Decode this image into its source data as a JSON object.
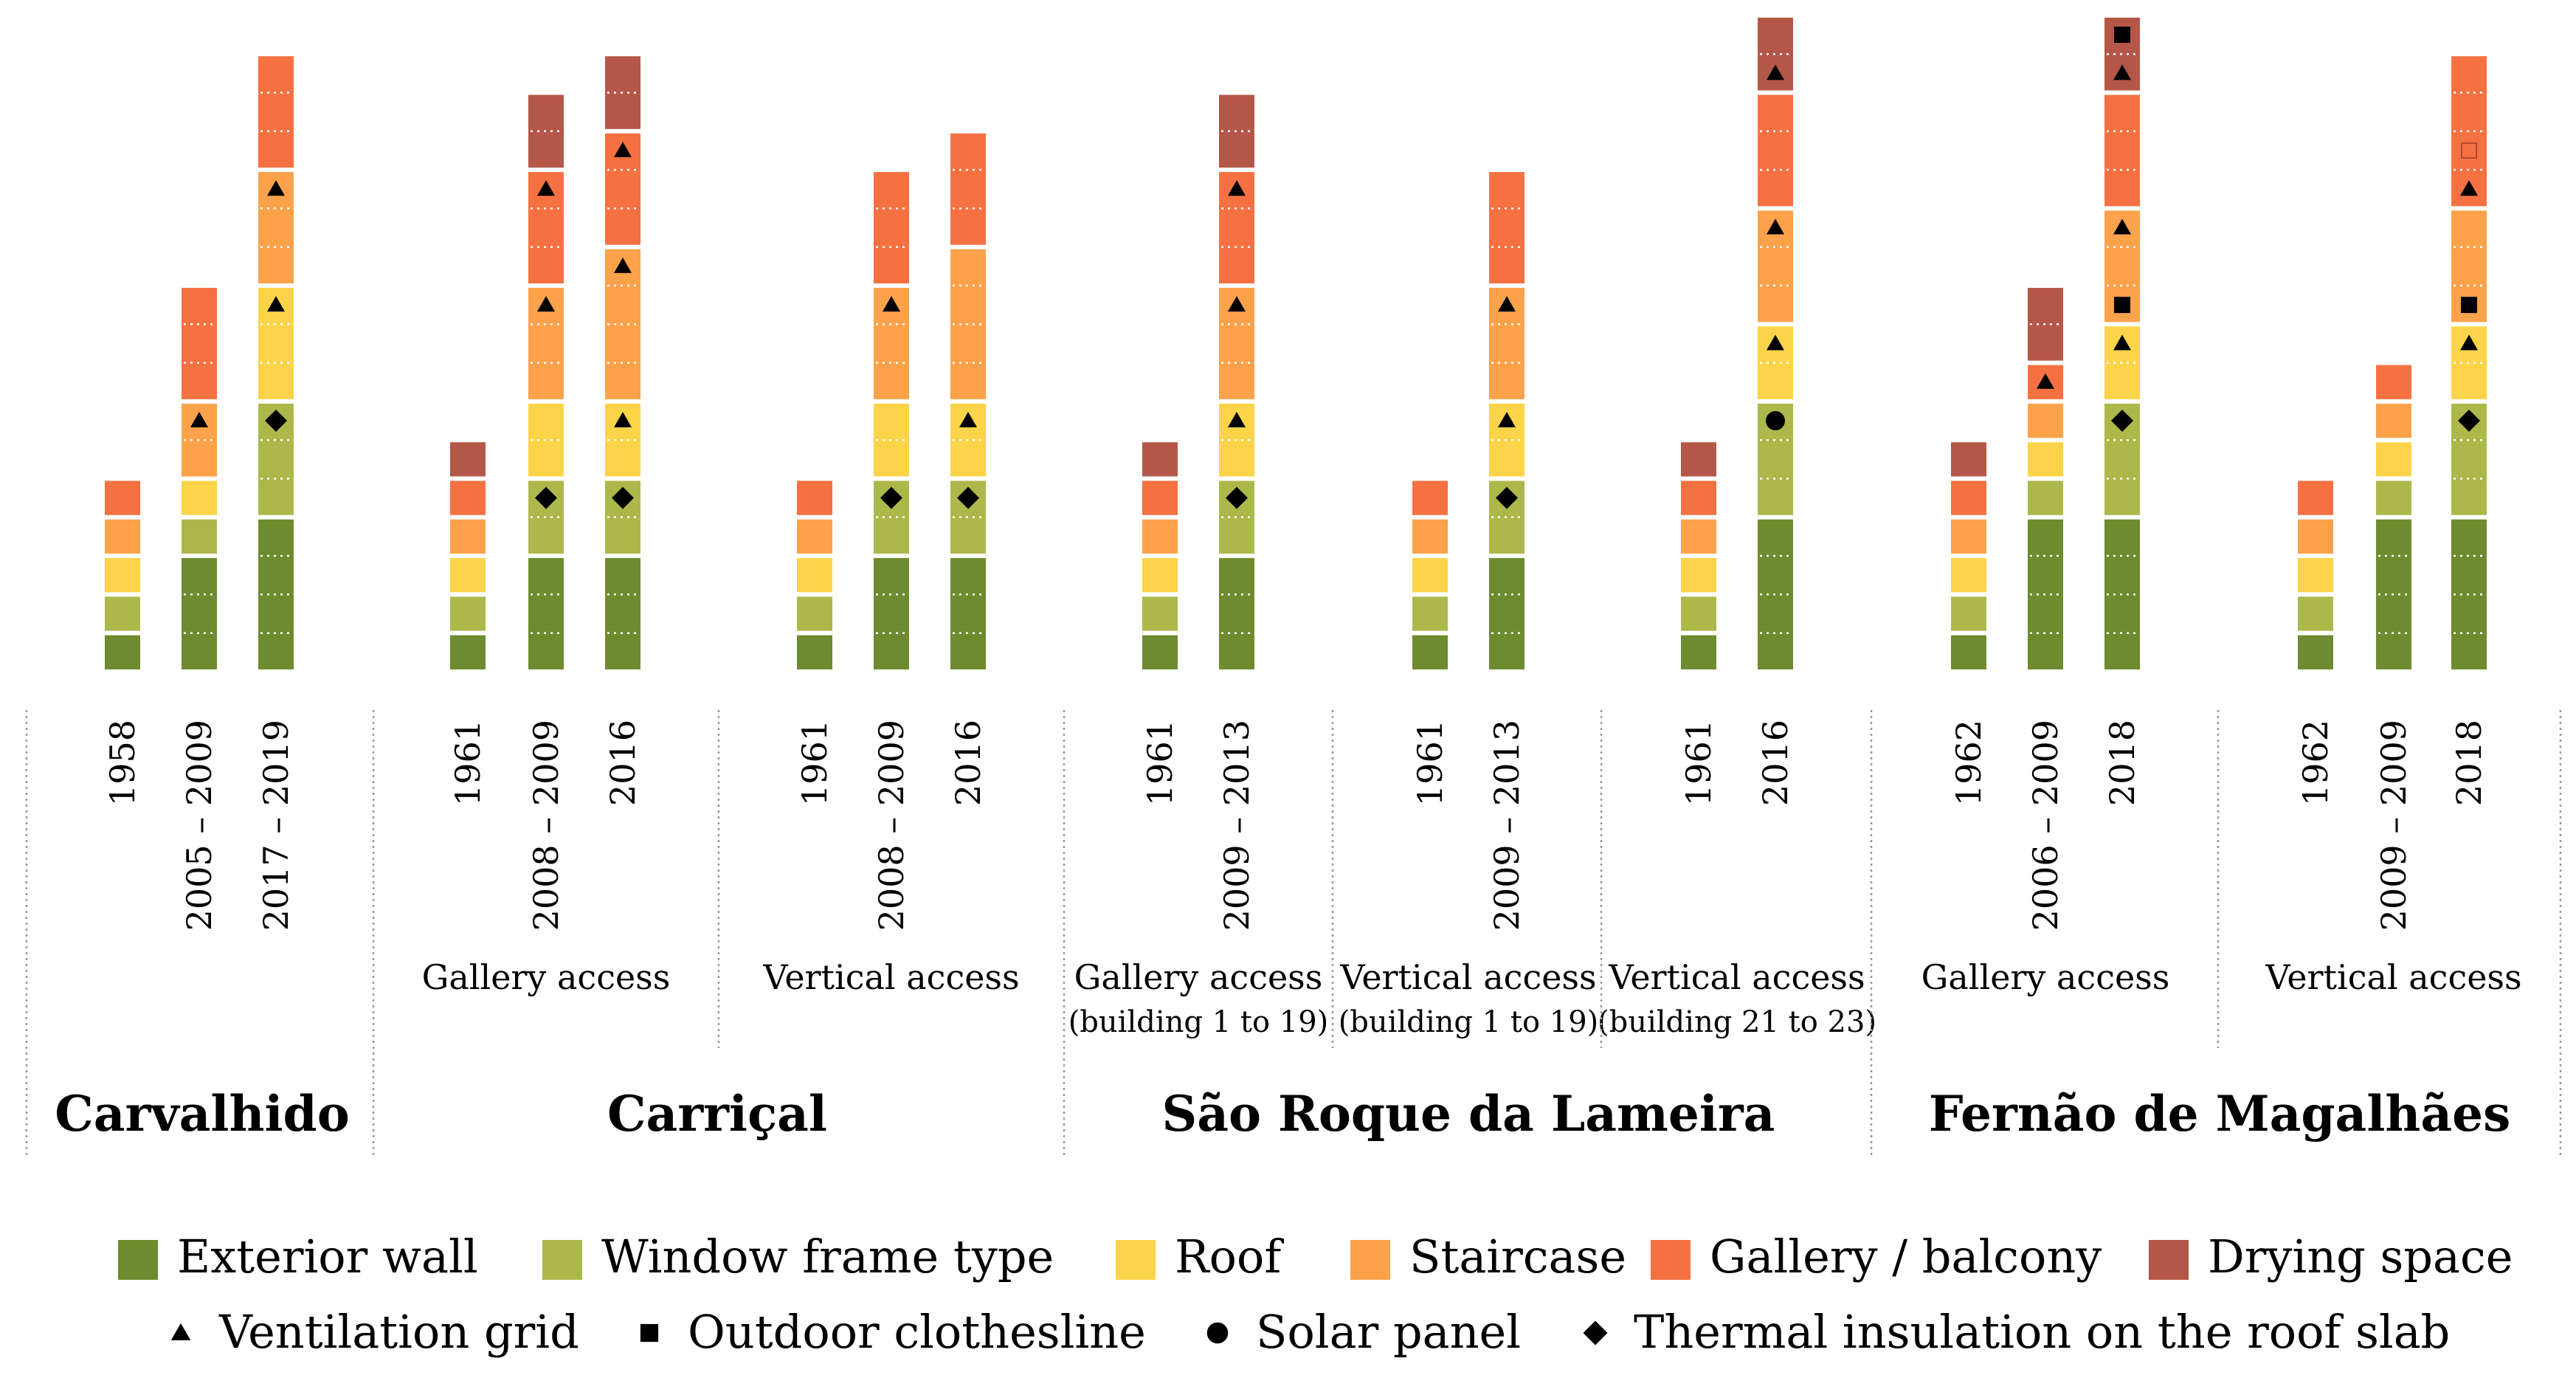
{
  "chart_data": {
    "type": "stacked-bar",
    "title": "",
    "xlabel": "",
    "ylabel": "",
    "ylim": [
      0,
      17
    ],
    "grid": false,
    "legend_position": "bottom",
    "categories_stack_order": [
      "Exterior wall",
      "Window frame type",
      "Roof",
      "Staircase",
      "Gallery / balcony",
      "Drying space"
    ],
    "colors": {
      "Exterior wall": "#6e8b2f",
      "Window frame type": "#adb84b",
      "Roof": "#fcd44a",
      "Staircase": "#fba24b",
      "Gallery / balcony": "#f57142",
      "Drying space": "#b55748",
      "marker": "#000000",
      "divider": "#999999"
    },
    "legend": {
      "items": [
        {
          "label": "Exterior wall",
          "key": "Exterior wall"
        },
        {
          "label": "Window frame type",
          "key": "Window frame type"
        },
        {
          "label": "Roof",
          "key": "Roof"
        },
        {
          "label": "Staircase",
          "key": "Staircase"
        },
        {
          "label": "Gallery / balcony",
          "key": "Gallery / balcony"
        },
        {
          "label": "Drying space",
          "key": "Drying space"
        }
      ],
      "markers": [
        {
          "label": "Ventilation grid",
          "symbol": "triangle"
        },
        {
          "label": "Outdoor clothesline",
          "symbol": "square"
        },
        {
          "label": "Solar panel",
          "symbol": "circle"
        },
        {
          "label": "Thermal insulation on the roof slab",
          "symbol": "diamond"
        }
      ]
    },
    "neighbourhoods": [
      {
        "name": "Carvalhido",
        "subgroups": [
          {
            "label": "",
            "label2": "",
            "bars": [
              {
                "year": "1958",
                "segments": [
                  1,
                  1,
                  1,
                  1,
                  1,
                  0
                ],
                "markers": []
              },
              {
                "year": "2005 – 2009",
                "segments": [
                  3,
                  1,
                  1,
                  2,
                  3,
                  0
                ],
                "markers": [
                  {
                    "unit": 7,
                    "symbol": "triangle"
                  }
                ]
              },
              {
                "year": "2017 – 2019",
                "segments": [
                  4,
                  3,
                  3,
                  3,
                  3,
                  0
                ],
                "markers": [
                  {
                    "unit": 7,
                    "symbol": "diamond"
                  },
                  {
                    "unit": 10,
                    "symbol": "triangle"
                  },
                  {
                    "unit": 13,
                    "symbol": "triangle"
                  }
                ]
              }
            ]
          }
        ]
      },
      {
        "name": "Carriçal",
        "subgroups": [
          {
            "label": "Gallery access",
            "label2": "",
            "bars": [
              {
                "year": "1961",
                "segments": [
                  1,
                  1,
                  1,
                  1,
                  1,
                  1
                ],
                "markers": []
              },
              {
                "year": "2008 – 2009",
                "segments": [
                  3,
                  2,
                  2,
                  3,
                  3,
                  2
                ],
                "markers": [
                  {
                    "unit": 5,
                    "symbol": "diamond"
                  },
                  {
                    "unit": 10,
                    "symbol": "triangle"
                  },
                  {
                    "unit": 13,
                    "symbol": "triangle"
                  }
                ]
              },
              {
                "year": "2016",
                "segments": [
                  3,
                  2,
                  2,
                  4,
                  3,
                  2
                ],
                "markers": [
                  {
                    "unit": 5,
                    "symbol": "diamond"
                  },
                  {
                    "unit": 7,
                    "symbol": "triangle"
                  },
                  {
                    "unit": 11,
                    "symbol": "triangle"
                  },
                  {
                    "unit": 14,
                    "symbol": "triangle"
                  }
                ]
              }
            ]
          },
          {
            "label": "Vertical access",
            "label2": "",
            "bars": [
              {
                "year": "1961",
                "segments": [
                  1,
                  1,
                  1,
                  1,
                  1,
                  0
                ],
                "markers": []
              },
              {
                "year": "2008 – 2009",
                "segments": [
                  3,
                  2,
                  2,
                  3,
                  3,
                  0
                ],
                "markers": [
                  {
                    "unit": 5,
                    "symbol": "diamond"
                  },
                  {
                    "unit": 10,
                    "symbol": "triangle"
                  }
                ]
              },
              {
                "year": "2016",
                "segments": [
                  3,
                  2,
                  2,
                  4,
                  3,
                  0
                ],
                "markers": [
                  {
                    "unit": 5,
                    "symbol": "diamond"
                  },
                  {
                    "unit": 7,
                    "symbol": "triangle"
                  }
                ]
              }
            ]
          }
        ]
      },
      {
        "name": "São Roque da Lameira",
        "subgroups": [
          {
            "label": "Gallery access",
            "label2": "(building 1 to 19)",
            "bars": [
              {
                "year": "1961",
                "segments": [
                  1,
                  1,
                  1,
                  1,
                  1,
                  1
                ],
                "markers": []
              },
              {
                "year": "2009 – 2013",
                "segments": [
                  3,
                  2,
                  2,
                  3,
                  3,
                  2
                ],
                "markers": [
                  {
                    "unit": 5,
                    "symbol": "diamond"
                  },
                  {
                    "unit": 7,
                    "symbol": "triangle"
                  },
                  {
                    "unit": 10,
                    "symbol": "triangle"
                  },
                  {
                    "unit": 13,
                    "symbol": "triangle"
                  }
                ]
              }
            ]
          },
          {
            "label": "Vertical access",
            "label2": "(building 1 to 19)",
            "bars": [
              {
                "year": "1961",
                "segments": [
                  1,
                  1,
                  1,
                  1,
                  1,
                  0
                ],
                "markers": []
              },
              {
                "year": "2009 – 2013",
                "segments": [
                  3,
                  2,
                  2,
                  3,
                  3,
                  0
                ],
                "markers": [
                  {
                    "unit": 5,
                    "symbol": "diamond"
                  },
                  {
                    "unit": 7,
                    "symbol": "triangle"
                  },
                  {
                    "unit": 10,
                    "symbol": "triangle"
                  }
                ]
              }
            ]
          },
          {
            "label": "Vertical access",
            "label2": "(building 21 to 23)",
            "bars": [
              {
                "year": "1961",
                "segments": [
                  1,
                  1,
                  1,
                  1,
                  1,
                  1
                ],
                "markers": []
              },
              {
                "year": "2016",
                "segments": [
                  4,
                  3,
                  2,
                  3,
                  3,
                  2
                ],
                "markers": [
                  {
                    "unit": 7,
                    "symbol": "circle"
                  },
                  {
                    "unit": 9,
                    "symbol": "triangle"
                  },
                  {
                    "unit": 12,
                    "symbol": "triangle"
                  },
                  {
                    "unit": 16,
                    "symbol": "triangle"
                  }
                ]
              }
            ]
          }
        ]
      },
      {
        "name": "Fernão de Magalhães",
        "subgroups": [
          {
            "label": "Gallery access",
            "label2": "",
            "bars": [
              {
                "year": "1962",
                "segments": [
                  1,
                  1,
                  1,
                  1,
                  1,
                  1
                ],
                "markers": []
              },
              {
                "year": "2006 – 2009",
                "segments": [
                  4,
                  1,
                  1,
                  1,
                  1,
                  2
                ],
                "markers": [
                  {
                    "unit": 8,
                    "symbol": "triangle"
                  }
                ]
              },
              {
                "year": "2018",
                "segments": [
                  4,
                  3,
                  2,
                  3,
                  3,
                  2
                ],
                "markers": [
                  {
                    "unit": 7,
                    "symbol": "diamond"
                  },
                  {
                    "unit": 9,
                    "symbol": "triangle"
                  },
                  {
                    "unit": 10,
                    "symbol": "square"
                  },
                  {
                    "unit": 12,
                    "symbol": "triangle"
                  },
                  {
                    "unit": 16,
                    "symbol": "triangle"
                  },
                  {
                    "unit": 17,
                    "symbol": "square"
                  }
                ]
              }
            ]
          },
          {
            "label": "Vertical access",
            "label2": "",
            "bars": [
              {
                "year": "1962",
                "segments": [
                  1,
                  1,
                  1,
                  1,
                  1,
                  0
                ],
                "markers": []
              },
              {
                "year": "2009 – 2009",
                "segments": [
                  4,
                  1,
                  1,
                  1,
                  1,
                  0
                ],
                "markers": []
              },
              {
                "year": "2018",
                "segments": [
                  4,
                  3,
                  2,
                  3,
                  4,
                  0
                ],
                "markers": [
                  {
                    "unit": 7,
                    "symbol": "diamond"
                  },
                  {
                    "unit": 9,
                    "symbol": "triangle"
                  },
                  {
                    "unit": 10,
                    "symbol": "square"
                  },
                  {
                    "unit": 13,
                    "symbol": "triangle"
                  },
                  {
                    "unit": 14,
                    "symbol": "open-square"
                  }
                ]
              }
            ]
          }
        ]
      }
    ]
  }
}
